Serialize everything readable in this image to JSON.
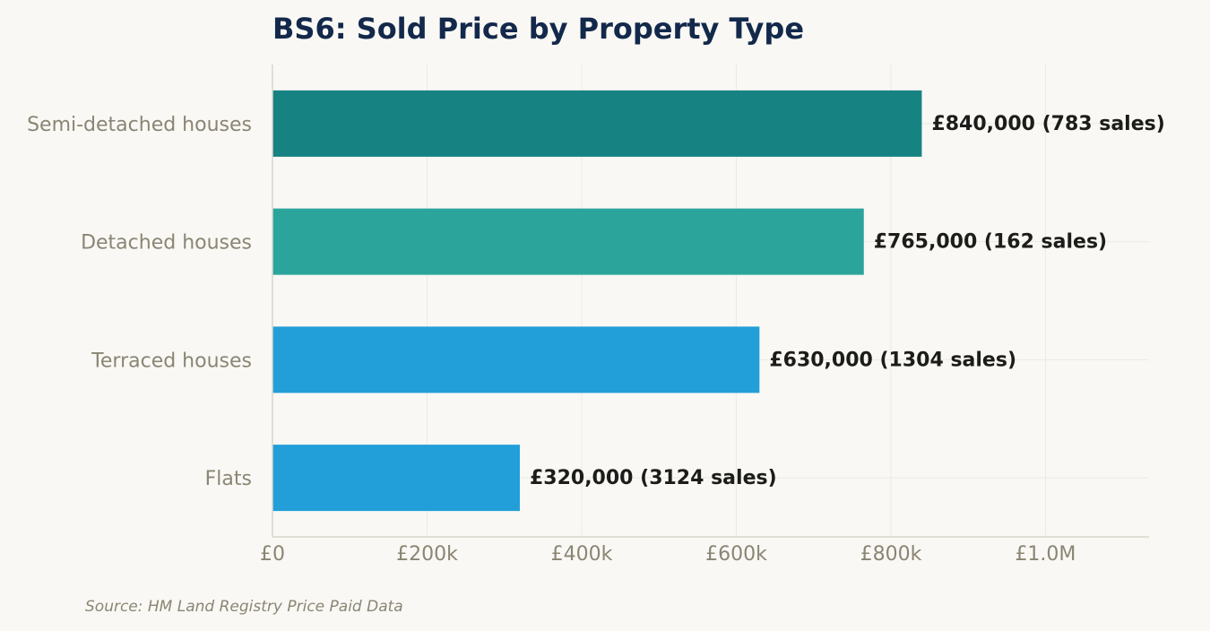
{
  "chart_data": {
    "type": "bar",
    "orientation": "horizontal",
    "title": "BS6: Sold Price by Property Type",
    "categories": [
      "Semi-detached houses",
      "Detached houses",
      "Terraced houses",
      "Flats"
    ],
    "values": [
      840000,
      765000,
      630000,
      320000
    ],
    "value_labels": [
      "£840,000  (783 sales)",
      "£765,000  (162 sales)",
      "£630,000  (1304 sales)",
      "£320,000  (3124 sales)"
    ],
    "sales_counts": [
      783,
      162,
      1304,
      3124
    ],
    "bar_colors": [
      "#178282",
      "#2ba59c",
      "#229ed9",
      "#229ed9"
    ],
    "x_ticks": [
      {
        "value": 0,
        "label": "£0"
      },
      {
        "value": 200000,
        "label": "£200k"
      },
      {
        "value": 400000,
        "label": "£400k"
      },
      {
        "value": 600000,
        "label": "£600k"
      },
      {
        "value": 800000,
        "label": "£800k"
      },
      {
        "value": 1000000,
        "label": "£1.0M"
      }
    ],
    "xlim": [
      0,
      1134000
    ],
    "xlabel": "",
    "ylabel": "",
    "grid": true,
    "legend": "none",
    "source": "Source: HM Land Registry Price Paid Data"
  }
}
